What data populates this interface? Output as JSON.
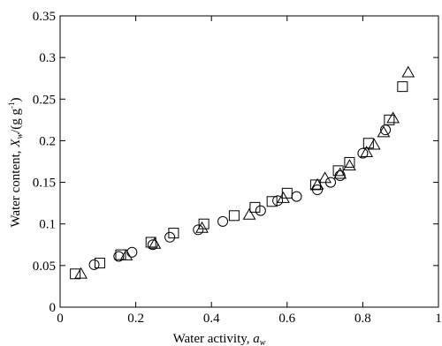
{
  "chart_data": {
    "type": "scatter",
    "title": "",
    "xlabel": {
      "main": "Water activity, ",
      "var": "a",
      "sub": "w"
    },
    "ylabel": {
      "main": "Water content, ",
      "var": "X",
      "sub": "w",
      "unit_open": "/(g g",
      "unit_sup": "-1",
      "unit_close": ")"
    },
    "xlim": [
      0,
      1
    ],
    "ylim": [
      0,
      0.35
    ],
    "x_ticks": [
      0,
      0.2,
      0.4,
      0.6,
      0.8,
      1
    ],
    "x_tick_labels": [
      "0",
      "0.2",
      "0.4",
      "0.6",
      "0.8",
      "1"
    ],
    "y_ticks": [
      0,
      0.05,
      0.1,
      0.15,
      0.2,
      0.25,
      0.3,
      0.35
    ],
    "y_tick_labels": [
      "0",
      "0.05",
      "0.1",
      "0.15",
      "0.2",
      "0.25",
      "0.3",
      "0.35"
    ],
    "grid": false,
    "series": [
      {
        "marker": "circle",
        "points": [
          [
            0.09,
            0.051
          ],
          [
            0.155,
            0.061
          ],
          [
            0.19,
            0.066
          ],
          [
            0.245,
            0.075
          ],
          [
            0.29,
            0.084
          ],
          [
            0.365,
            0.093
          ],
          [
            0.43,
            0.103
          ],
          [
            0.53,
            0.116
          ],
          [
            0.575,
            0.128
          ],
          [
            0.625,
            0.133
          ],
          [
            0.68,
            0.141
          ],
          [
            0.715,
            0.15
          ],
          [
            0.74,
            0.158
          ],
          [
            0.8,
            0.185
          ],
          [
            0.86,
            0.213
          ]
        ]
      },
      {
        "marker": "square",
        "points": [
          [
            0.04,
            0.04
          ],
          [
            0.105,
            0.053
          ],
          [
            0.16,
            0.063
          ],
          [
            0.24,
            0.078
          ],
          [
            0.3,
            0.089
          ],
          [
            0.38,
            0.1
          ],
          [
            0.46,
            0.11
          ],
          [
            0.515,
            0.12
          ],
          [
            0.56,
            0.127
          ],
          [
            0.6,
            0.137
          ],
          [
            0.675,
            0.147
          ],
          [
            0.735,
            0.164
          ],
          [
            0.765,
            0.174
          ],
          [
            0.815,
            0.197
          ],
          [
            0.87,
            0.225
          ],
          [
            0.905,
            0.265
          ]
        ]
      },
      {
        "marker": "triangle",
        "points": [
          [
            0.055,
            0.04
          ],
          [
            0.175,
            0.062
          ],
          [
            0.25,
            0.076
          ],
          [
            0.375,
            0.095
          ],
          [
            0.5,
            0.111
          ],
          [
            0.59,
            0.131
          ],
          [
            0.68,
            0.147
          ],
          [
            0.7,
            0.155
          ],
          [
            0.74,
            0.16
          ],
          [
            0.765,
            0.17
          ],
          [
            0.81,
            0.186
          ],
          [
            0.83,
            0.195
          ],
          [
            0.855,
            0.21
          ],
          [
            0.88,
            0.227
          ],
          [
            0.92,
            0.282
          ]
        ]
      }
    ]
  }
}
